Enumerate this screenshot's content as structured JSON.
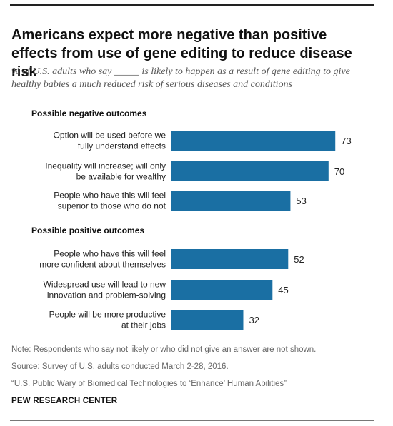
{
  "title": "Americans expect more negative than positive effects from use of gene editing to reduce disease risk",
  "subtitle": "% of U.S. adults who say _____ is likely to happen as a result of gene editing to give healthy babies a much reduced risk of serious diseases and conditions",
  "chart_data": {
    "type": "bar",
    "orientation": "horizontal",
    "xlim": [
      0,
      100
    ],
    "bar_color": "#1a6fa3",
    "groups": [
      {
        "label": "Possible negative outcomes",
        "items": [
          {
            "category": [
              "Option will be used before we",
              "fully understand effects"
            ],
            "value": 73
          },
          {
            "category": [
              "Inequality will increase; will only",
              "be available for wealthy"
            ],
            "value": 70
          },
          {
            "category": [
              "People who have this will feel",
              "superior to those who do not"
            ],
            "value": 53
          }
        ]
      },
      {
        "label": "Possible positive outcomes",
        "items": [
          {
            "category": [
              "People who have this will feel",
              "more confident about themselves"
            ],
            "value": 52
          },
          {
            "category": [
              "Widespread use will lead to new",
              "innovation and problem-solving"
            ],
            "value": 45
          },
          {
            "category": [
              "People will be more productive",
              "at their jobs"
            ],
            "value": 32
          }
        ]
      }
    ]
  },
  "footer": {
    "note": "Note: Respondents who say not likely or who did not give an answer are not shown.",
    "source": "Source: Survey of U.S. adults conducted March 2-28, 2016.",
    "report": "“U.S. Public Wary of Biomedical Technologies to ‘Enhance’ Human Abilities”",
    "brand": "PEW RESEARCH CENTER"
  }
}
